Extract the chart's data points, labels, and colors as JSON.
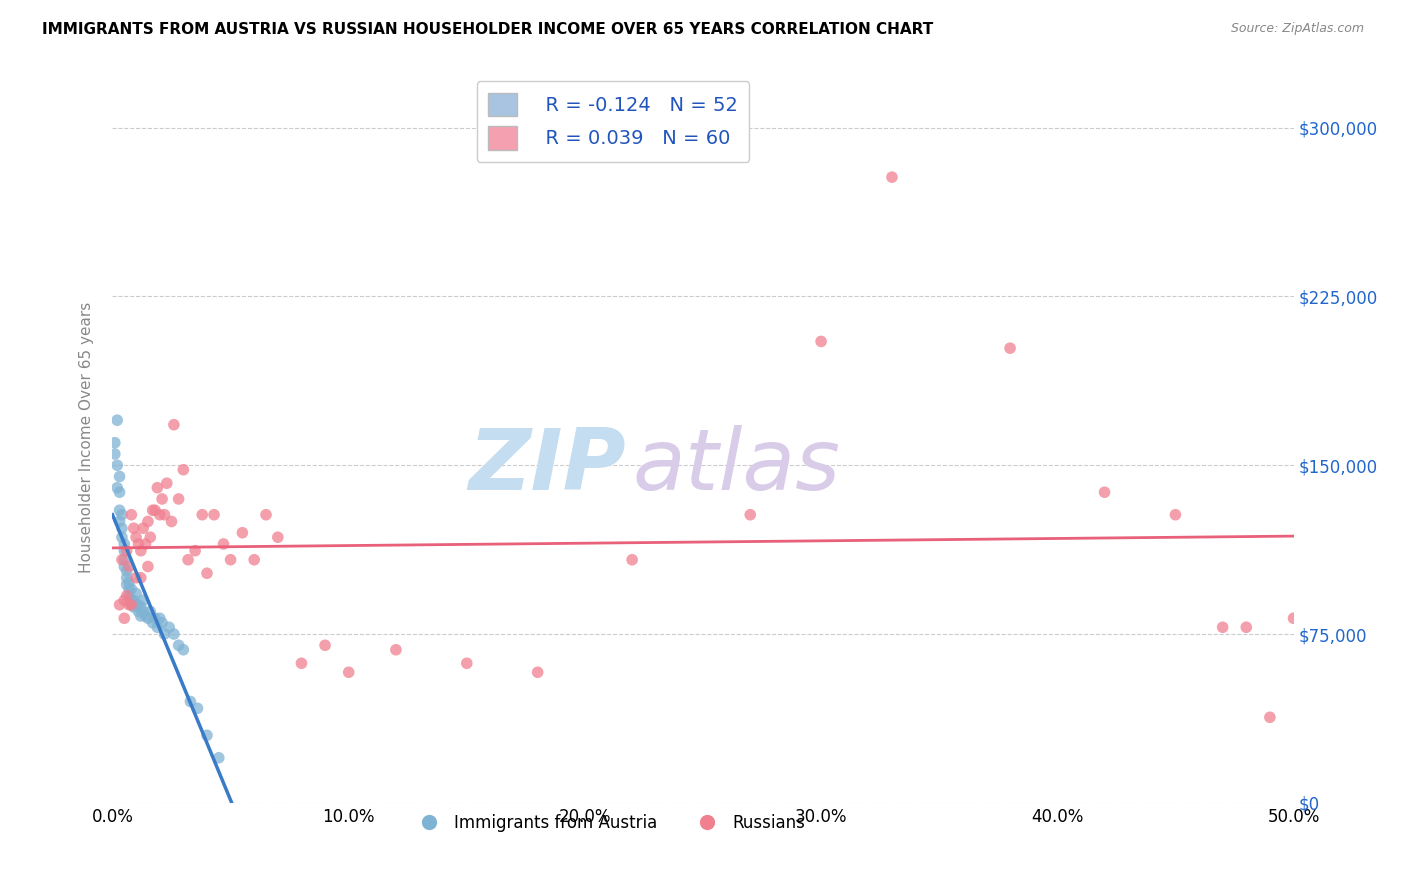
{
  "title": "IMMIGRANTS FROM AUSTRIA VS RUSSIAN HOUSEHOLDER INCOME OVER 65 YEARS CORRELATION CHART",
  "source": "Source: ZipAtlas.com",
  "ylabel": "Householder Income Over 65 years",
  "xlim": [
    0.0,
    0.5
  ],
  "ylim": [
    0,
    325000
  ],
  "xtick_labels": [
    "0.0%",
    "10.0%",
    "20.0%",
    "30.0%",
    "40.0%",
    "50.0%"
  ],
  "xtick_values": [
    0.0,
    0.1,
    0.2,
    0.3,
    0.4,
    0.5
  ],
  "ytick_values": [
    0,
    75000,
    150000,
    225000,
    300000
  ],
  "ytick_labels": [
    "$0",
    "$75,000",
    "$150,000",
    "$225,000",
    "$300,000"
  ],
  "legend_r_austria": "-0.124",
  "legend_n_austria": "52",
  "legend_r_russian": "0.039",
  "legend_n_russian": "60",
  "austria_color": "#a8c4e0",
  "russian_color": "#f4a0b0",
  "austria_dot_color": "#7fb3d3",
  "russian_dot_color": "#f08090",
  "trendline_austria_color": "#3a7bc8",
  "trendline_russian_color": "#e8607a",
  "trendline_austria_dashed_color": "#b8d0ea",
  "watermark_zip_color": "#c8dff0",
  "watermark_atlas_color": "#d0c8e8",
  "austria_x": [
    0.001,
    0.001,
    0.002,
    0.002,
    0.002,
    0.003,
    0.003,
    0.003,
    0.003,
    0.004,
    0.004,
    0.004,
    0.005,
    0.005,
    0.005,
    0.005,
    0.006,
    0.006,
    0.006,
    0.007,
    0.007,
    0.007,
    0.008,
    0.008,
    0.008,
    0.009,
    0.009,
    0.01,
    0.01,
    0.011,
    0.011,
    0.012,
    0.012,
    0.013,
    0.013,
    0.014,
    0.015,
    0.016,
    0.017,
    0.018,
    0.019,
    0.02,
    0.021,
    0.022,
    0.024,
    0.026,
    0.028,
    0.03,
    0.033,
    0.036,
    0.04,
    0.045
  ],
  "austria_y": [
    160000,
    155000,
    170000,
    150000,
    140000,
    145000,
    138000,
    130000,
    125000,
    128000,
    122000,
    118000,
    115000,
    112000,
    108000,
    105000,
    103000,
    100000,
    97000,
    98000,
    95000,
    92000,
    95000,
    90000,
    88000,
    90000,
    87000,
    93000,
    88000,
    88000,
    85000,
    87000,
    83000,
    90000,
    85000,
    83000,
    82000,
    85000,
    80000,
    82000,
    78000,
    82000,
    80000,
    75000,
    78000,
    75000,
    70000,
    68000,
    45000,
    42000,
    30000,
    20000
  ],
  "russian_x": [
    0.003,
    0.004,
    0.005,
    0.005,
    0.006,
    0.006,
    0.007,
    0.007,
    0.008,
    0.008,
    0.009,
    0.01,
    0.01,
    0.011,
    0.012,
    0.012,
    0.013,
    0.014,
    0.015,
    0.015,
    0.016,
    0.017,
    0.018,
    0.019,
    0.02,
    0.021,
    0.022,
    0.023,
    0.025,
    0.026,
    0.028,
    0.03,
    0.032,
    0.035,
    0.038,
    0.04,
    0.043,
    0.047,
    0.05,
    0.055,
    0.06,
    0.065,
    0.07,
    0.08,
    0.09,
    0.1,
    0.12,
    0.15,
    0.18,
    0.22,
    0.27,
    0.3,
    0.33,
    0.38,
    0.42,
    0.45,
    0.47,
    0.48,
    0.49,
    0.5
  ],
  "russian_y": [
    88000,
    108000,
    90000,
    82000,
    112000,
    92000,
    105000,
    88000,
    128000,
    88000,
    122000,
    118000,
    100000,
    115000,
    112000,
    100000,
    122000,
    115000,
    125000,
    105000,
    118000,
    130000,
    130000,
    140000,
    128000,
    135000,
    128000,
    142000,
    125000,
    168000,
    135000,
    148000,
    108000,
    112000,
    128000,
    102000,
    128000,
    115000,
    108000,
    120000,
    108000,
    128000,
    118000,
    62000,
    70000,
    58000,
    68000,
    62000,
    58000,
    108000,
    128000,
    205000,
    278000,
    202000,
    138000,
    128000,
    78000,
    78000,
    38000,
    82000
  ]
}
